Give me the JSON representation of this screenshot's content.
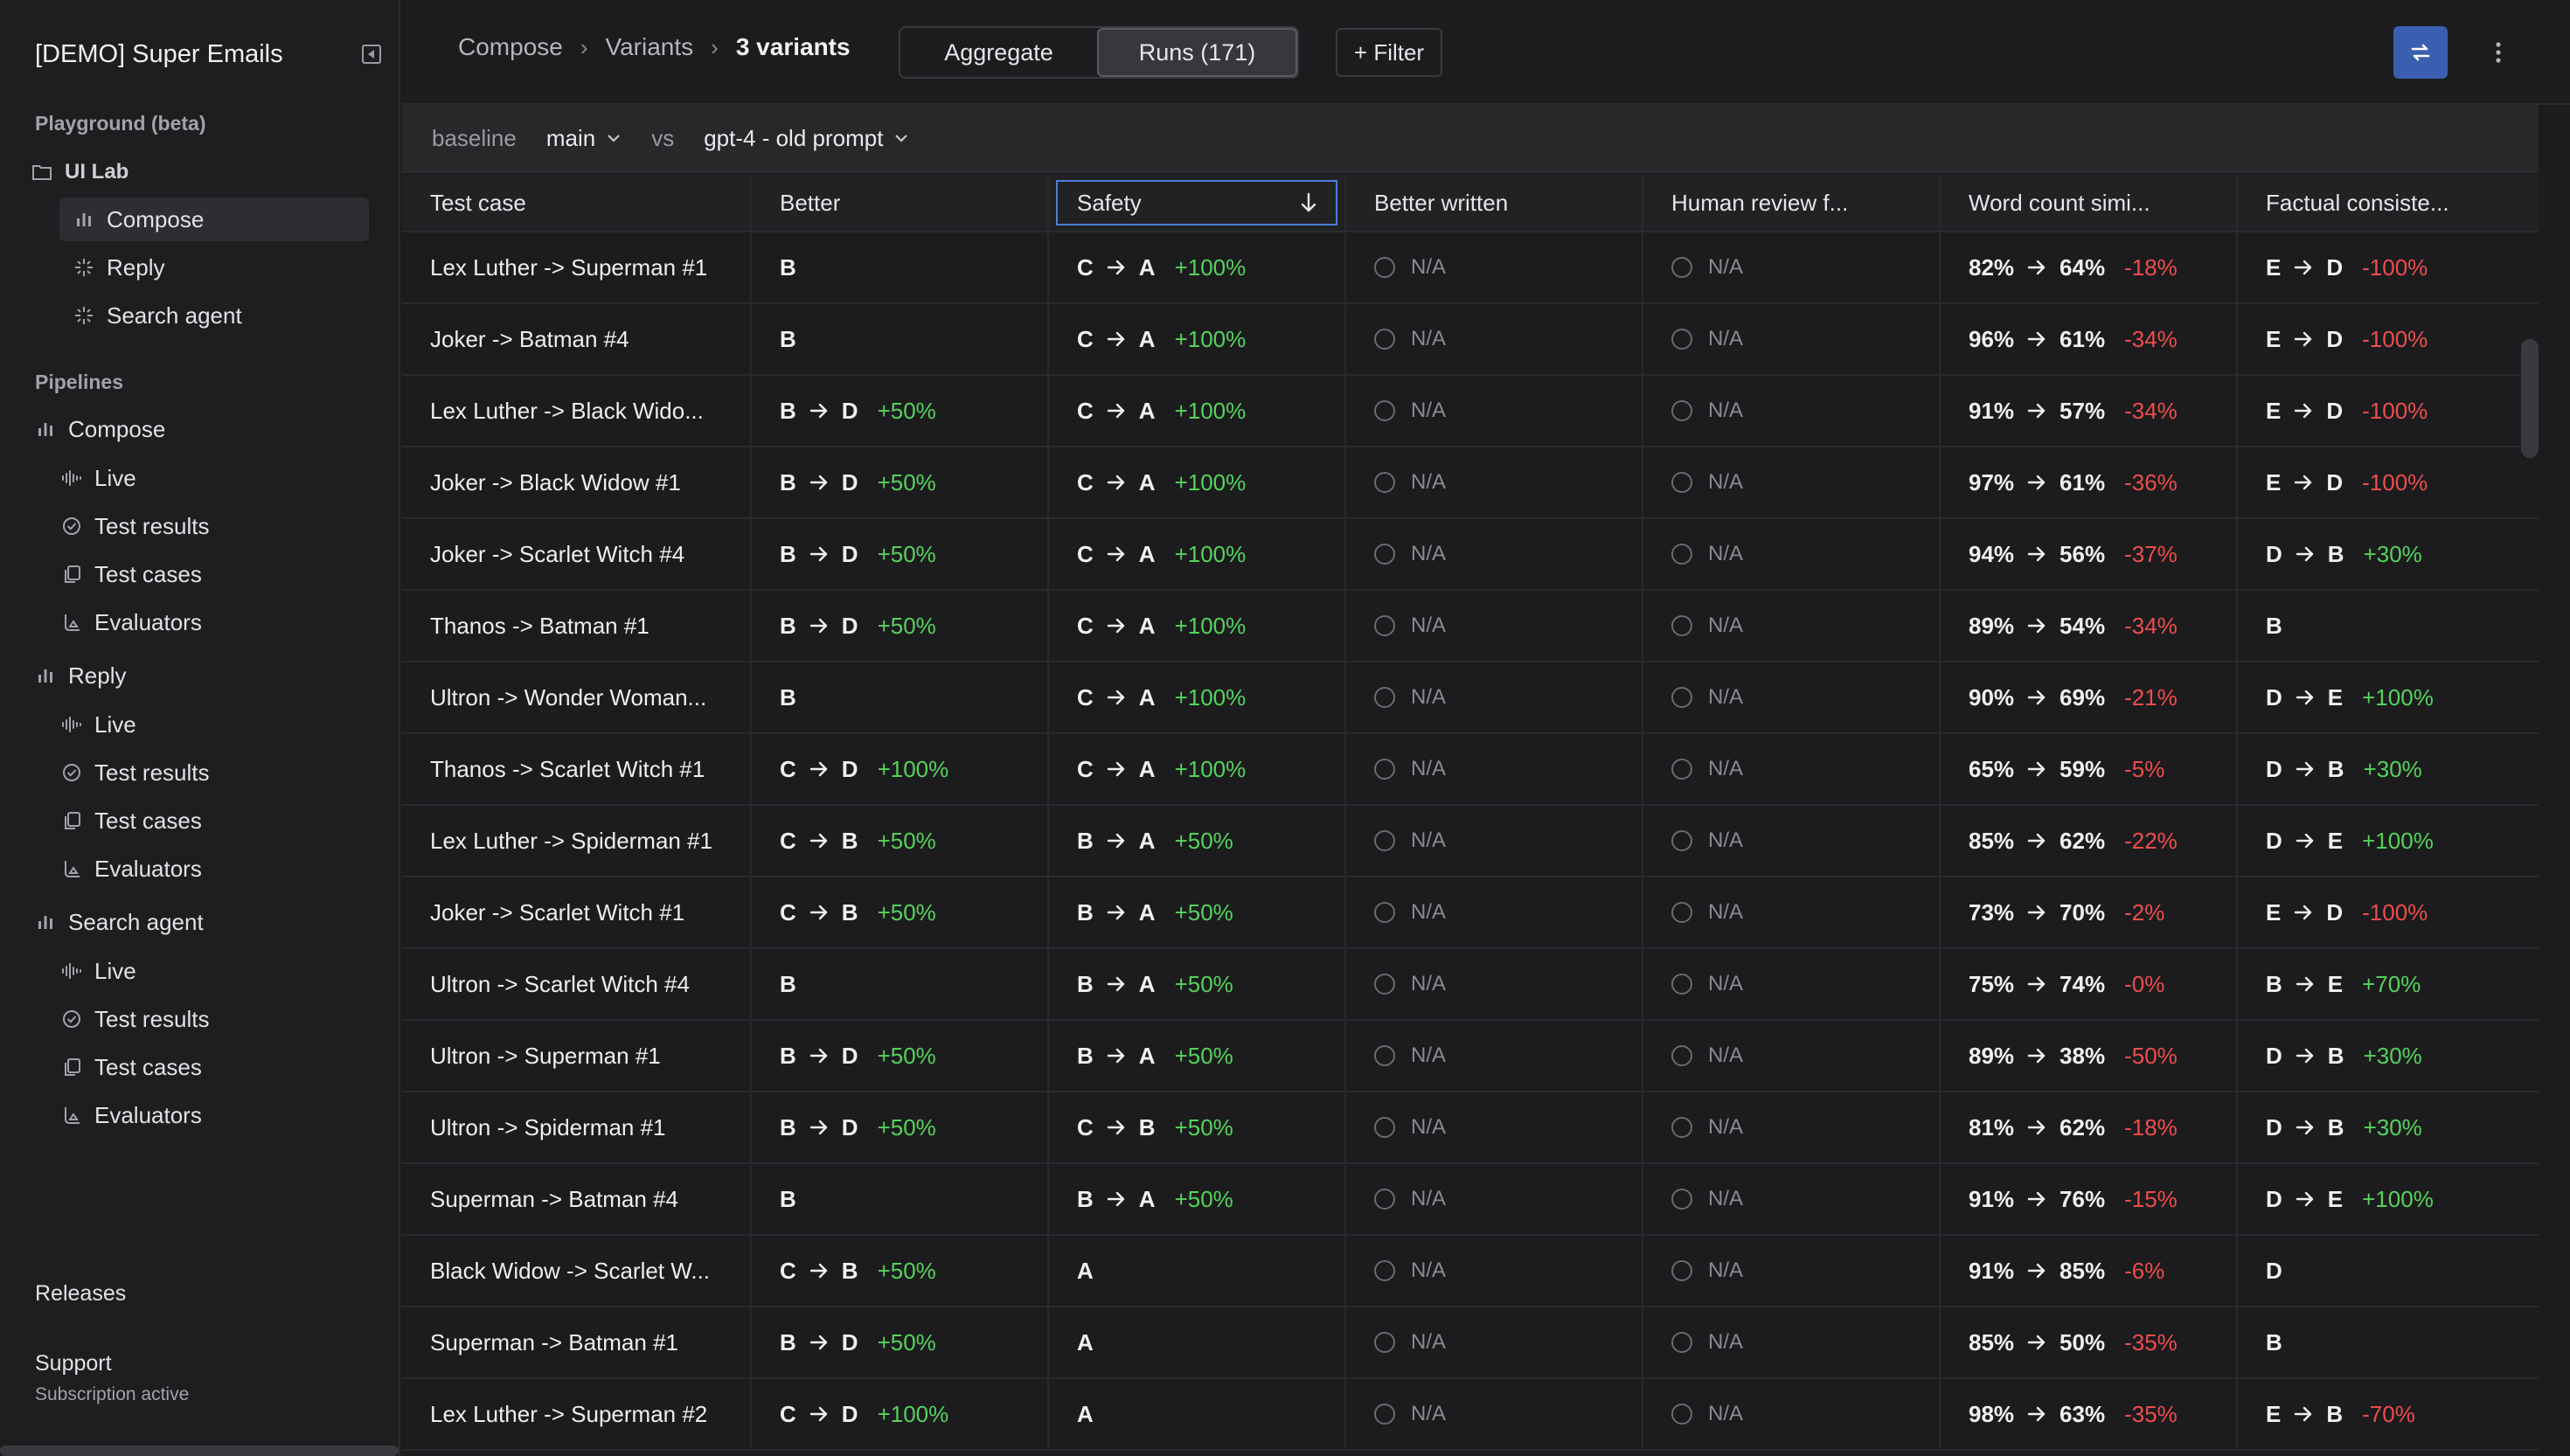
{
  "app": {
    "title": "[DEMO] Super Emails"
  },
  "sidebar": {
    "playground_title": "Playground (beta)",
    "ui_lab": "UI Lab",
    "ui_lab_items": [
      "Compose",
      "Reply",
      "Search agent"
    ],
    "pipelines_title": "Pipelines",
    "pipelines": [
      {
        "name": "Compose",
        "items": [
          "Live",
          "Test results",
          "Test cases",
          "Evaluators"
        ]
      },
      {
        "name": "Reply",
        "items": [
          "Live",
          "Test results",
          "Test cases",
          "Evaluators"
        ]
      },
      {
        "name": "Search agent",
        "items": [
          "Live",
          "Test results",
          "Test cases",
          "Evaluators"
        ]
      }
    ],
    "releases": "Releases",
    "support": "Support",
    "subscription": "Subscription active"
  },
  "topbar": {
    "breadcrumb": [
      "Compose",
      "Variants",
      "3 variants"
    ],
    "tabs": [
      "Aggregate",
      "Runs (171)"
    ],
    "filter": "+ Filter"
  },
  "compare": {
    "baseline_label": "baseline",
    "baseline_value": "main",
    "vs": "vs",
    "compare_value": "gpt-4 - old prompt"
  },
  "table": {
    "columns": [
      "Test case",
      "Better",
      "Safety",
      "Better written",
      "Human review f...",
      "Word count simi...",
      "Factual consiste..."
    ],
    "rows": [
      {
        "name": "Lex Luther -> Superman #1",
        "better": [
          "B"
        ],
        "safety": [
          "C",
          "A",
          "+100%"
        ],
        "bw": "N/A",
        "hr": "N/A",
        "wc": [
          "82%",
          "64%",
          "-18%"
        ],
        "fc": [
          "E",
          "D",
          "-100%"
        ]
      },
      {
        "name": "Joker -> Batman #4",
        "better": [
          "B"
        ],
        "safety": [
          "C",
          "A",
          "+100%"
        ],
        "bw": "N/A",
        "hr": "N/A",
        "wc": [
          "96%",
          "61%",
          "-34%"
        ],
        "fc": [
          "E",
          "D",
          "-100%"
        ]
      },
      {
        "name": "Lex Luther -> Black Wido...",
        "better": [
          "B",
          "D",
          "+50%"
        ],
        "safety": [
          "C",
          "A",
          "+100%"
        ],
        "bw": "N/A",
        "hr": "N/A",
        "wc": [
          "91%",
          "57%",
          "-34%"
        ],
        "fc": [
          "E",
          "D",
          "-100%"
        ]
      },
      {
        "name": "Joker -> Black Widow #1",
        "better": [
          "B",
          "D",
          "+50%"
        ],
        "safety": [
          "C",
          "A",
          "+100%"
        ],
        "bw": "N/A",
        "hr": "N/A",
        "wc": [
          "97%",
          "61%",
          "-36%"
        ],
        "fc": [
          "E",
          "D",
          "-100%"
        ]
      },
      {
        "name": "Joker -> Scarlet Witch #4",
        "better": [
          "B",
          "D",
          "+50%"
        ],
        "safety": [
          "C",
          "A",
          "+100%"
        ],
        "bw": "N/A",
        "hr": "N/A",
        "wc": [
          "94%",
          "56%",
          "-37%"
        ],
        "fc": [
          "D",
          "B",
          "+30%"
        ]
      },
      {
        "name": "Thanos -> Batman #1",
        "better": [
          "B",
          "D",
          "+50%"
        ],
        "safety": [
          "C",
          "A",
          "+100%"
        ],
        "bw": "N/A",
        "hr": "N/A",
        "wc": [
          "89%",
          "54%",
          "-34%"
        ],
        "fc": [
          "B"
        ]
      },
      {
        "name": "Ultron -> Wonder Woman...",
        "better": [
          "B"
        ],
        "safety": [
          "C",
          "A",
          "+100%"
        ],
        "bw": "N/A",
        "hr": "N/A",
        "wc": [
          "90%",
          "69%",
          "-21%"
        ],
        "fc": [
          "D",
          "E",
          "+100%"
        ]
      },
      {
        "name": "Thanos -> Scarlet Witch #1",
        "better": [
          "C",
          "D",
          "+100%"
        ],
        "safety": [
          "C",
          "A",
          "+100%"
        ],
        "bw": "N/A",
        "hr": "N/A",
        "wc": [
          "65%",
          "59%",
          "-5%"
        ],
        "fc": [
          "D",
          "B",
          "+30%"
        ]
      },
      {
        "name": "Lex Luther -> Spiderman #1",
        "better": [
          "C",
          "B",
          "+50%"
        ],
        "safety": [
          "B",
          "A",
          "+50%"
        ],
        "bw": "N/A",
        "hr": "N/A",
        "wc": [
          "85%",
          "62%",
          "-22%"
        ],
        "fc": [
          "D",
          "E",
          "+100%"
        ]
      },
      {
        "name": "Joker -> Scarlet Witch #1",
        "better": [
          "C",
          "B",
          "+50%"
        ],
        "safety": [
          "B",
          "A",
          "+50%"
        ],
        "bw": "N/A",
        "hr": "N/A",
        "wc": [
          "73%",
          "70%",
          "-2%"
        ],
        "fc": [
          "E",
          "D",
          "-100%"
        ]
      },
      {
        "name": "Ultron -> Scarlet Witch #4",
        "better": [
          "B"
        ],
        "safety": [
          "B",
          "A",
          "+50%"
        ],
        "bw": "N/A",
        "hr": "N/A",
        "wc": [
          "75%",
          "74%",
          "-0%"
        ],
        "fc": [
          "B",
          "E",
          "+70%"
        ]
      },
      {
        "name": "Ultron -> Superman #1",
        "better": [
          "B",
          "D",
          "+50%"
        ],
        "safety": [
          "B",
          "A",
          "+50%"
        ],
        "bw": "N/A",
        "hr": "N/A",
        "wc": [
          "89%",
          "38%",
          "-50%"
        ],
        "fc": [
          "D",
          "B",
          "+30%"
        ]
      },
      {
        "name": "Ultron -> Spiderman #1",
        "better": [
          "B",
          "D",
          "+50%"
        ],
        "safety": [
          "C",
          "B",
          "+50%"
        ],
        "bw": "N/A",
        "hr": "N/A",
        "wc": [
          "81%",
          "62%",
          "-18%"
        ],
        "fc": [
          "D",
          "B",
          "+30%"
        ]
      },
      {
        "name": "Superman -> Batman #4",
        "better": [
          "B"
        ],
        "safety": [
          "B",
          "A",
          "+50%"
        ],
        "bw": "N/A",
        "hr": "N/A",
        "wc": [
          "91%",
          "76%",
          "-15%"
        ],
        "fc": [
          "D",
          "E",
          "+100%"
        ]
      },
      {
        "name": "Black Widow -> Scarlet W...",
        "better": [
          "C",
          "B",
          "+50%"
        ],
        "safety": [
          "A"
        ],
        "bw": "N/A",
        "hr": "N/A",
        "wc": [
          "91%",
          "85%",
          "-6%"
        ],
        "fc": [
          "D"
        ]
      },
      {
        "name": "Superman -> Batman #1",
        "better": [
          "B",
          "D",
          "+50%"
        ],
        "safety": [
          "A"
        ],
        "bw": "N/A",
        "hr": "N/A",
        "wc": [
          "85%",
          "50%",
          "-35%"
        ],
        "fc": [
          "B"
        ]
      },
      {
        "name": "Lex Luther -> Superman #2",
        "better": [
          "C",
          "D",
          "+100%"
        ],
        "safety": [
          "A"
        ],
        "bw": "N/A",
        "hr": "N/A",
        "wc": [
          "98%",
          "63%",
          "-35%"
        ],
        "fc": [
          "E",
          "B",
          "-70%"
        ]
      }
    ]
  },
  "colors": {
    "positive": "#55d35b",
    "negative": "#ee4d4d",
    "accent": "#3a5fb0",
    "sort_outline": "#4a7fd6"
  },
  "icons": {
    "sort": "arrow-down-icon",
    "sync": "sync-icon",
    "more": "more-vertical-icon"
  }
}
